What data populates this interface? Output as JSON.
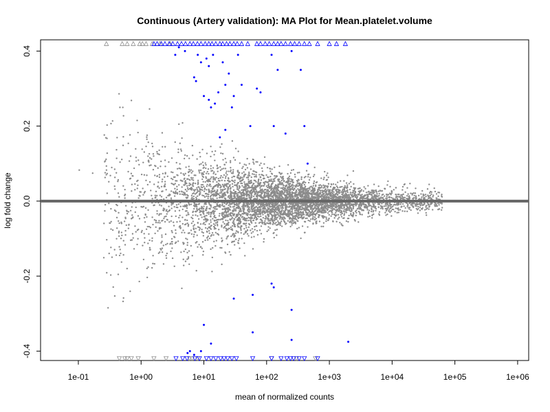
{
  "chart_data": {
    "type": "scatter",
    "title": "Continuous (Artery validation): MA Plot for Mean.platelet.volume",
    "xlabel": "mean of normalized counts",
    "ylabel": "log fold change",
    "x_scale": "log10",
    "xlim": [
      0.025,
      1500000
    ],
    "ylim": [
      -0.425,
      0.43
    ],
    "x_ticks": [
      {
        "value": 0.1,
        "label": "1e-01"
      },
      {
        "value": 1,
        "label": "1e+00"
      },
      {
        "value": 10,
        "label": "1e+01"
      },
      {
        "value": 100,
        "label": "1e+02"
      },
      {
        "value": 1000,
        "label": "1e+03"
      },
      {
        "value": 10000,
        "label": "1e+04"
      },
      {
        "value": 100000,
        "label": "1e+05"
      },
      {
        "value": 1000000,
        "label": "1e+06"
      }
    ],
    "y_ticks": [
      {
        "value": -0.4,
        "label": "-0.4"
      },
      {
        "value": -0.2,
        "label": "-0.2"
      },
      {
        "value": 0.0,
        "label": "0.0"
      },
      {
        "value": 0.2,
        "label": "0.2"
      },
      {
        "value": 0.4,
        "label": "0.4"
      }
    ],
    "reference_line": {
      "y": 0,
      "color": "#666666"
    },
    "grid": false,
    "legend": "none",
    "colors": {
      "non_significant": "#8c8c8c",
      "significant": "#0000ff"
    },
    "clipped_y_upper": 0.42,
    "clipped_y_lower": -0.42,
    "series": [
      {
        "key": "significant",
        "points": [
          [
            3.5,
            0.39
          ],
          [
            4.0,
            0.41
          ],
          [
            5.0,
            0.4
          ],
          [
            7.0,
            0.33
          ],
          [
            7.5,
            0.32
          ],
          [
            8.0,
            0.39
          ],
          [
            9.0,
            0.37
          ],
          [
            11.0,
            0.38
          ],
          [
            12.0,
            0.36
          ],
          [
            14.0,
            0.39
          ],
          [
            10.0,
            0.28
          ],
          [
            12.0,
            0.27
          ],
          [
            13.0,
            0.25
          ],
          [
            15.0,
            0.26
          ],
          [
            17.0,
            0.29
          ],
          [
            20.0,
            0.37
          ],
          [
            22.0,
            0.31
          ],
          [
            25.0,
            0.34
          ],
          [
            28.0,
            0.25
          ],
          [
            30.0,
            0.28
          ],
          [
            35.0,
            0.39
          ],
          [
            40.0,
            0.31
          ],
          [
            55.0,
            0.2
          ],
          [
            70.0,
            0.3
          ],
          [
            80.0,
            0.29
          ],
          [
            120.0,
            0.39
          ],
          [
            130.0,
            0.2
          ],
          [
            150.0,
            0.35
          ],
          [
            200.0,
            0.18
          ],
          [
            250.0,
            0.4
          ],
          [
            350.0,
            0.35
          ],
          [
            400.0,
            0.2
          ],
          [
            450.0,
            0.1
          ],
          [
            18.0,
            0.17
          ],
          [
            22.0,
            0.19
          ],
          [
            10.0,
            -0.33
          ],
          [
            30.0,
            -0.26
          ],
          [
            60.0,
            -0.25
          ],
          [
            60.0,
            -0.35
          ],
          [
            120.0,
            -0.22
          ],
          [
            130.0,
            -0.23
          ],
          [
            250.0,
            -0.29
          ],
          [
            250.0,
            -0.37
          ],
          [
            2000.0,
            -0.375
          ],
          [
            6.0,
            -0.4
          ],
          [
            7.0,
            -0.41
          ],
          [
            9.0,
            -0.4
          ],
          [
            13.0,
            -0.38
          ],
          [
            5.5,
            -0.405
          ]
        ],
        "clipped_upper_x": [
          1.6,
          1.8,
          2.1,
          2.4,
          2.8,
          3.2,
          3.8,
          4.4,
          5.1,
          6.0,
          6.8,
          7.9,
          9.0,
          10.5,
          12.0,
          13.5,
          15.5,
          18.0,
          20.0,
          23.0,
          26.0,
          30.0,
          34.0,
          40.0,
          50.0,
          70.0,
          80.0,
          95.0,
          110.0,
          130.0,
          150.0,
          170.0,
          200.0,
          240.0,
          280.0,
          330.0,
          400.0,
          480.0,
          650.0,
          1000.0,
          1300.0,
          1800.0
        ],
        "clipped_lower_x": [
          3.6,
          4.6,
          5.4,
          7.2,
          8.5,
          11.0,
          13.0,
          15.5,
          18.5,
          21.0,
          24.0,
          28.0,
          33.0,
          60.0,
          120.0,
          170.0,
          210.0,
          240.0,
          270.0,
          330.0,
          400.0,
          650.0
        ]
      },
      {
        "key": "non_significant",
        "clipped_upper_x": [
          0.28,
          0.5,
          0.6,
          0.75,
          0.95,
          1.05,
          1.2,
          1.5,
          2.0,
          2.9
        ],
        "clipped_lower_x": [
          0.45,
          0.55,
          0.6,
          0.7,
          0.9,
          1.6,
          2.5,
          5.9,
          6.5,
          8.0,
          120.0,
          300.0,
          600.0
        ]
      }
    ]
  }
}
